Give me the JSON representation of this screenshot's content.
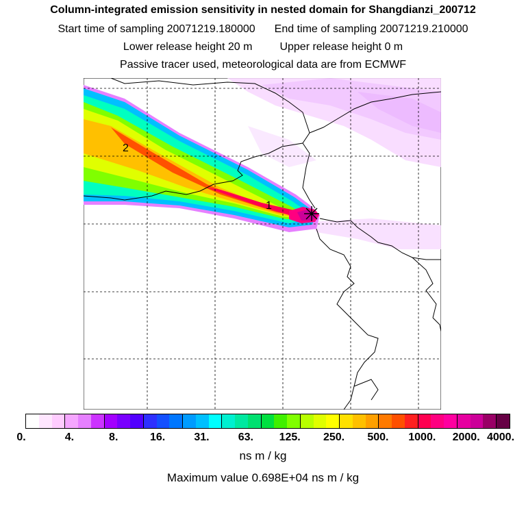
{
  "header": {
    "title": "Column-integrated emission sensitivity in nested domain for Shangdianzi_200712",
    "start_label": "Start time of sampling 20071219.180000",
    "end_label": "End time of sampling 20071219.210000",
    "lower_label": "Lower release height   20 m",
    "upper_label": "Upper release height    0 m",
    "tracer_label": "Passive tracer used, meteorological data are from ECMWF"
  },
  "map": {
    "markers": [
      "1",
      "2"
    ]
  },
  "colorbar": {
    "labels": [
      "0.",
      "4.",
      "8.",
      "16.",
      "31.",
      "63.",
      "125.",
      "250.",
      "500.",
      "1000.",
      "2000.",
      "4000."
    ],
    "colors": [
      "#ffffff",
      "#ffe6ff",
      "#ffccff",
      "#f5a6ff",
      "#e680ff",
      "#cc33ff",
      "#a300ff",
      "#7a00ff",
      "#5200ff",
      "#2e30ff",
      "#1450ff",
      "#0077ff",
      "#009cff",
      "#00c0ff",
      "#00ffff",
      "#00f0d0",
      "#00e8a0",
      "#00e070",
      "#00e040",
      "#40f000",
      "#80ff00",
      "#b8ff00",
      "#e0ff00",
      "#ffff00",
      "#ffe000",
      "#ffc000",
      "#ffa000",
      "#ff7a00",
      "#ff5000",
      "#ff2020",
      "#ff0050",
      "#ff0080",
      "#ff00a0",
      "#e600a0",
      "#cc0099",
      "#990066",
      "#660044"
    ],
    "unit": "ns m / kg",
    "max_value": "Maximum value  0.698E+04 ns m / kg"
  }
}
